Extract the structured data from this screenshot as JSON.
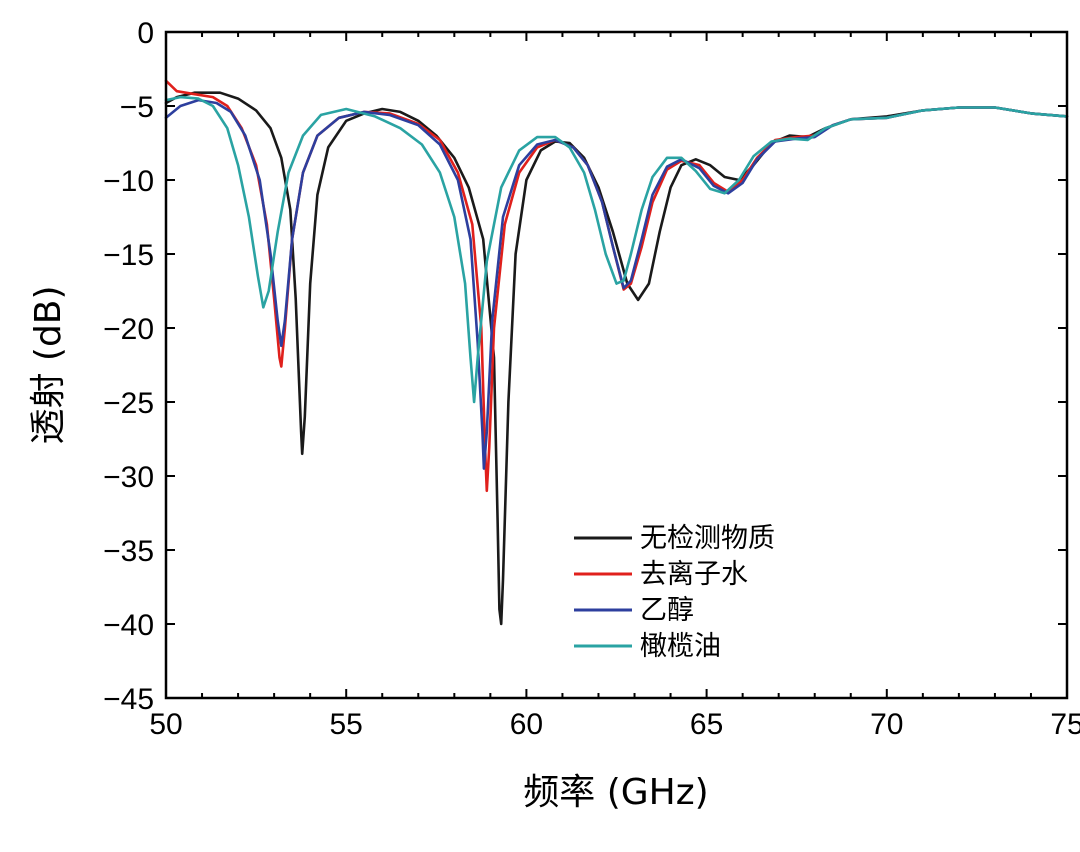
{
  "chart_data": {
    "type": "line",
    "title": "",
    "xlabel": "频率 (GHz)",
    "ylabel": "透射 (dB)",
    "xlim": [
      50,
      75
    ],
    "ylim": [
      -45,
      0
    ],
    "xticks": [
      50,
      55,
      60,
      65,
      70,
      75
    ],
    "yticks": [
      0,
      -5,
      -10,
      -15,
      -20,
      -25,
      -30,
      -35,
      -40,
      -45
    ],
    "xtick_labels": [
      "50",
      "55",
      "60",
      "65",
      "70",
      "75"
    ],
    "ytick_labels": [
      "0",
      "−5",
      "−10",
      "−15",
      "−20",
      "−25",
      "−30",
      "−35",
      "−40",
      "−45"
    ],
    "grid": false,
    "legend_position": "lower-center",
    "series": [
      {
        "name": "无检测物质",
        "color": "#1a1a1a",
        "points": [
          [
            50.0,
            -4.8
          ],
          [
            50.3,
            -4.4
          ],
          [
            50.8,
            -4.1
          ],
          [
            51.5,
            -4.1
          ],
          [
            52.0,
            -4.5
          ],
          [
            52.5,
            -5.3
          ],
          [
            52.9,
            -6.5
          ],
          [
            53.2,
            -8.5
          ],
          [
            53.45,
            -12.0
          ],
          [
            53.6,
            -18.0
          ],
          [
            53.75,
            -27.0
          ],
          [
            53.78,
            -28.5
          ],
          [
            53.85,
            -26.0
          ],
          [
            54.0,
            -17.0
          ],
          [
            54.2,
            -11.0
          ],
          [
            54.5,
            -7.8
          ],
          [
            55.0,
            -6.0
          ],
          [
            55.5,
            -5.5
          ],
          [
            56.0,
            -5.2
          ],
          [
            56.5,
            -5.4
          ],
          [
            57.0,
            -6.0
          ],
          [
            57.5,
            -7.0
          ],
          [
            58.0,
            -8.5
          ],
          [
            58.4,
            -10.5
          ],
          [
            58.8,
            -14.0
          ],
          [
            59.1,
            -22.0
          ],
          [
            59.2,
            -33.0
          ],
          [
            59.25,
            -39.0
          ],
          [
            59.3,
            -40.0
          ],
          [
            59.35,
            -37.0
          ],
          [
            59.5,
            -25.0
          ],
          [
            59.7,
            -15.0
          ],
          [
            60.0,
            -10.0
          ],
          [
            60.4,
            -8.0
          ],
          [
            60.8,
            -7.4
          ],
          [
            61.2,
            -7.5
          ],
          [
            61.6,
            -8.5
          ],
          [
            62.0,
            -10.5
          ],
          [
            62.4,
            -13.5
          ],
          [
            62.8,
            -17.0
          ],
          [
            63.1,
            -18.1
          ],
          [
            63.4,
            -17.0
          ],
          [
            63.7,
            -13.5
          ],
          [
            64.0,
            -10.5
          ],
          [
            64.3,
            -9.0
          ],
          [
            64.7,
            -8.6
          ],
          [
            65.1,
            -9.0
          ],
          [
            65.5,
            -9.8
          ],
          [
            65.9,
            -10.0
          ],
          [
            66.3,
            -9.0
          ],
          [
            66.8,
            -7.5
          ],
          [
            67.3,
            -7.0
          ],
          [
            67.8,
            -7.1
          ],
          [
            68.3,
            -6.5
          ],
          [
            69.0,
            -5.9
          ],
          [
            70.0,
            -5.7
          ],
          [
            71.0,
            -5.3
          ],
          [
            72.0,
            -5.1
          ],
          [
            73.0,
            -5.1
          ],
          [
            74.0,
            -5.5
          ],
          [
            75.0,
            -5.7
          ]
        ]
      },
      {
        "name": "去离子水",
        "color": "#e0201c",
        "points": [
          [
            50.0,
            -3.3
          ],
          [
            50.3,
            -4.0
          ],
          [
            50.8,
            -4.2
          ],
          [
            51.3,
            -4.4
          ],
          [
            51.7,
            -5.0
          ],
          [
            52.1,
            -6.5
          ],
          [
            52.5,
            -9.0
          ],
          [
            52.8,
            -13.0
          ],
          [
            53.0,
            -18.0
          ],
          [
            53.15,
            -22.0
          ],
          [
            53.2,
            -22.6
          ],
          [
            53.3,
            -20.0
          ],
          [
            53.5,
            -14.0
          ],
          [
            53.8,
            -9.5
          ],
          [
            54.2,
            -7.0
          ],
          [
            54.8,
            -5.8
          ],
          [
            55.5,
            -5.4
          ],
          [
            56.2,
            -5.5
          ],
          [
            57.0,
            -6.2
          ],
          [
            57.6,
            -7.3
          ],
          [
            58.1,
            -9.5
          ],
          [
            58.5,
            -13.0
          ],
          [
            58.75,
            -20.0
          ],
          [
            58.85,
            -28.0
          ],
          [
            58.9,
            -31.0
          ],
          [
            58.97,
            -28.0
          ],
          [
            59.1,
            -20.0
          ],
          [
            59.4,
            -13.0
          ],
          [
            59.8,
            -9.5
          ],
          [
            60.3,
            -7.8
          ],
          [
            60.8,
            -7.3
          ],
          [
            61.3,
            -7.8
          ],
          [
            61.7,
            -9.0
          ],
          [
            62.1,
            -11.5
          ],
          [
            62.4,
            -14.5
          ],
          [
            62.7,
            -17.4
          ],
          [
            62.9,
            -17.0
          ],
          [
            63.2,
            -14.5
          ],
          [
            63.5,
            -11.5
          ],
          [
            63.9,
            -9.3
          ],
          [
            64.3,
            -8.7
          ],
          [
            64.8,
            -9.0
          ],
          [
            65.2,
            -10.2
          ],
          [
            65.6,
            -10.8
          ],
          [
            66.0,
            -10.0
          ],
          [
            66.4,
            -8.5
          ],
          [
            66.9,
            -7.3
          ],
          [
            67.5,
            -7.1
          ],
          [
            68.0,
            -7.0
          ],
          [
            68.5,
            -6.3
          ],
          [
            69.0,
            -5.9
          ],
          [
            70.0,
            -5.8
          ],
          [
            71.0,
            -5.3
          ],
          [
            72.0,
            -5.1
          ],
          [
            73.0,
            -5.1
          ],
          [
            74.0,
            -5.5
          ],
          [
            75.0,
            -5.7
          ]
        ]
      },
      {
        "name": "乙醇",
        "color": "#2d3f9e",
        "points": [
          [
            50.0,
            -5.8
          ],
          [
            50.4,
            -5.0
          ],
          [
            50.9,
            -4.6
          ],
          [
            51.4,
            -4.8
          ],
          [
            51.8,
            -5.4
          ],
          [
            52.2,
            -7.0
          ],
          [
            52.6,
            -10.0
          ],
          [
            52.9,
            -15.0
          ],
          [
            53.1,
            -19.5
          ],
          [
            53.2,
            -21.2
          ],
          [
            53.3,
            -19.5
          ],
          [
            53.5,
            -14.0
          ],
          [
            53.8,
            -9.5
          ],
          [
            54.2,
            -7.0
          ],
          [
            54.8,
            -5.8
          ],
          [
            55.5,
            -5.4
          ],
          [
            56.2,
            -5.6
          ],
          [
            57.0,
            -6.3
          ],
          [
            57.6,
            -7.6
          ],
          [
            58.1,
            -10.0
          ],
          [
            58.45,
            -14.0
          ],
          [
            58.65,
            -21.0
          ],
          [
            58.78,
            -27.0
          ],
          [
            58.82,
            -29.5
          ],
          [
            58.9,
            -27.0
          ],
          [
            59.05,
            -19.5
          ],
          [
            59.35,
            -12.5
          ],
          [
            59.8,
            -9.0
          ],
          [
            60.3,
            -7.6
          ],
          [
            60.8,
            -7.3
          ],
          [
            61.3,
            -7.8
          ],
          [
            61.7,
            -9.0
          ],
          [
            62.1,
            -11.5
          ],
          [
            62.4,
            -14.5
          ],
          [
            62.7,
            -17.3
          ],
          [
            62.9,
            -16.8
          ],
          [
            63.2,
            -14.0
          ],
          [
            63.5,
            -11.0
          ],
          [
            63.9,
            -9.1
          ],
          [
            64.3,
            -8.6
          ],
          [
            64.8,
            -9.2
          ],
          [
            65.2,
            -10.4
          ],
          [
            65.6,
            -10.9
          ],
          [
            66.0,
            -10.2
          ],
          [
            66.4,
            -8.6
          ],
          [
            66.9,
            -7.4
          ],
          [
            67.5,
            -7.2
          ],
          [
            68.0,
            -7.1
          ],
          [
            68.5,
            -6.3
          ],
          [
            69.0,
            -5.9
          ],
          [
            70.0,
            -5.8
          ],
          [
            71.0,
            -5.3
          ],
          [
            72.0,
            -5.1
          ],
          [
            73.0,
            -5.1
          ],
          [
            74.0,
            -5.5
          ],
          [
            75.0,
            -5.7
          ]
        ]
      },
      {
        "name": "橄榄油",
        "color": "#2aa3a3",
        "points": [
          [
            50.0,
            -4.6
          ],
          [
            50.4,
            -4.4
          ],
          [
            50.9,
            -4.5
          ],
          [
            51.3,
            -5.0
          ],
          [
            51.7,
            -6.5
          ],
          [
            52.0,
            -9.0
          ],
          [
            52.3,
            -12.5
          ],
          [
            52.55,
            -16.5
          ],
          [
            52.7,
            -18.6
          ],
          [
            52.85,
            -17.5
          ],
          [
            53.1,
            -13.5
          ],
          [
            53.4,
            -9.5
          ],
          [
            53.8,
            -7.0
          ],
          [
            54.3,
            -5.6
          ],
          [
            55.0,
            -5.2
          ],
          [
            55.8,
            -5.7
          ],
          [
            56.5,
            -6.5
          ],
          [
            57.1,
            -7.6
          ],
          [
            57.6,
            -9.5
          ],
          [
            58.0,
            -12.5
          ],
          [
            58.3,
            -17.0
          ],
          [
            58.45,
            -22.0
          ],
          [
            58.55,
            -25.0
          ],
          [
            58.65,
            -22.0
          ],
          [
            58.9,
            -15.5
          ],
          [
            59.3,
            -10.5
          ],
          [
            59.8,
            -8.0
          ],
          [
            60.3,
            -7.1
          ],
          [
            60.8,
            -7.1
          ],
          [
            61.2,
            -7.8
          ],
          [
            61.6,
            -9.5
          ],
          [
            61.9,
            -12.0
          ],
          [
            62.2,
            -15.0
          ],
          [
            62.5,
            -17.0
          ],
          [
            62.7,
            -16.8
          ],
          [
            62.9,
            -15.0
          ],
          [
            63.2,
            -12.0
          ],
          [
            63.5,
            -9.8
          ],
          [
            63.9,
            -8.5
          ],
          [
            64.3,
            -8.5
          ],
          [
            64.7,
            -9.4
          ],
          [
            65.1,
            -10.6
          ],
          [
            65.5,
            -10.9
          ],
          [
            65.9,
            -10.0
          ],
          [
            66.3,
            -8.4
          ],
          [
            66.8,
            -7.4
          ],
          [
            67.3,
            -7.2
          ],
          [
            67.8,
            -7.3
          ],
          [
            68.3,
            -6.5
          ],
          [
            69.0,
            -5.9
          ],
          [
            70.0,
            -5.8
          ],
          [
            71.0,
            -5.3
          ],
          [
            72.0,
            -5.1
          ],
          [
            73.0,
            -5.1
          ],
          [
            74.0,
            -5.5
          ],
          [
            75.0,
            -5.7
          ]
        ]
      }
    ]
  }
}
